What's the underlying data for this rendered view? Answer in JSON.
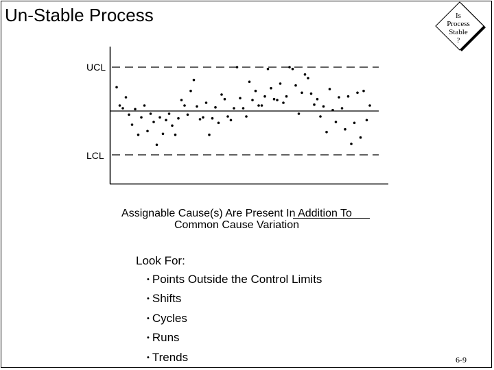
{
  "slide": {
    "title": "Un-Stable Process",
    "badge": {
      "line1": "Is",
      "line2": "Process",
      "line3": "Stable",
      "line4": "?"
    },
    "caption_line1": "Assignable Cause(s) Are Present In Addition To",
    "caption_line2": "Common Cause Variation",
    "look_for_heading": "Look For:",
    "look_for_items": [
      "Points Outside the Control Limits",
      "Shifts",
      "Cycles",
      "Runs",
      "Trends"
    ],
    "page_number": "6-9"
  },
  "chart_data": {
    "type": "scatter",
    "title": "",
    "xlabel": "",
    "ylabel": "",
    "limits": {
      "ucl_label": "UCL",
      "lcl_label": "LCL",
      "ucl": 4.8,
      "center": 0,
      "lcl": 4.8
    },
    "ylim": [
      -7,
      6.5
    ],
    "grid": false,
    "x": [
      1,
      2,
      3,
      4,
      5,
      6,
      7,
      8,
      9,
      10,
      11,
      12,
      13,
      14,
      15,
      16,
      17,
      18,
      19,
      20,
      21,
      22,
      23,
      24,
      25,
      26,
      27,
      28,
      29,
      30,
      31,
      32,
      33,
      34,
      35,
      36,
      37,
      38,
      39,
      40,
      41,
      42,
      43,
      44,
      45,
      46,
      47,
      48,
      49,
      50,
      51,
      52,
      53,
      54,
      55,
      56,
      57,
      58,
      59,
      60,
      61,
      62,
      63,
      64,
      65,
      66,
      67,
      68,
      69,
      70,
      71,
      72,
      73,
      74,
      75,
      76,
      77,
      78,
      79,
      80,
      81,
      82,
      83
    ],
    "values": [
      2.6,
      0.6,
      0.3,
      1.5,
      -0.4,
      -1.5,
      0.2,
      -2.6,
      -0.7,
      0.6,
      -2.2,
      -0.3,
      -1.2,
      -3.7,
      -0.7,
      -2.5,
      -1.0,
      -0.3,
      -1.6,
      -2.6,
      -0.8,
      1.2,
      0.6,
      -0.4,
      2.2,
      3.4,
      0.5,
      -0.9,
      -0.7,
      0.9,
      -2.6,
      -0.8,
      0.4,
      -1.3,
      1.8,
      1.3,
      -0.6,
      -1.0,
      0.3,
      4.8,
      1.4,
      0.3,
      -0.6,
      3.2,
      1.2,
      2.2,
      0.6,
      0.6,
      1.6,
      4.6,
      2.5,
      1.3,
      1.2,
      3.0,
      0.9,
      1.6,
      4.8,
      4.6,
      2.8,
      -0.3,
      2.0,
      4.0,
      3.6,
      1.9,
      0.7,
      1.3,
      -0.6,
      0.5,
      -2.3,
      2.4,
      0.1,
      -1.2,
      1.5,
      0.3,
      -2.0,
      1.6,
      -3.6,
      -1.3,
      2.0,
      -2.9,
      2.2,
      -1.0,
      0.6
    ]
  }
}
